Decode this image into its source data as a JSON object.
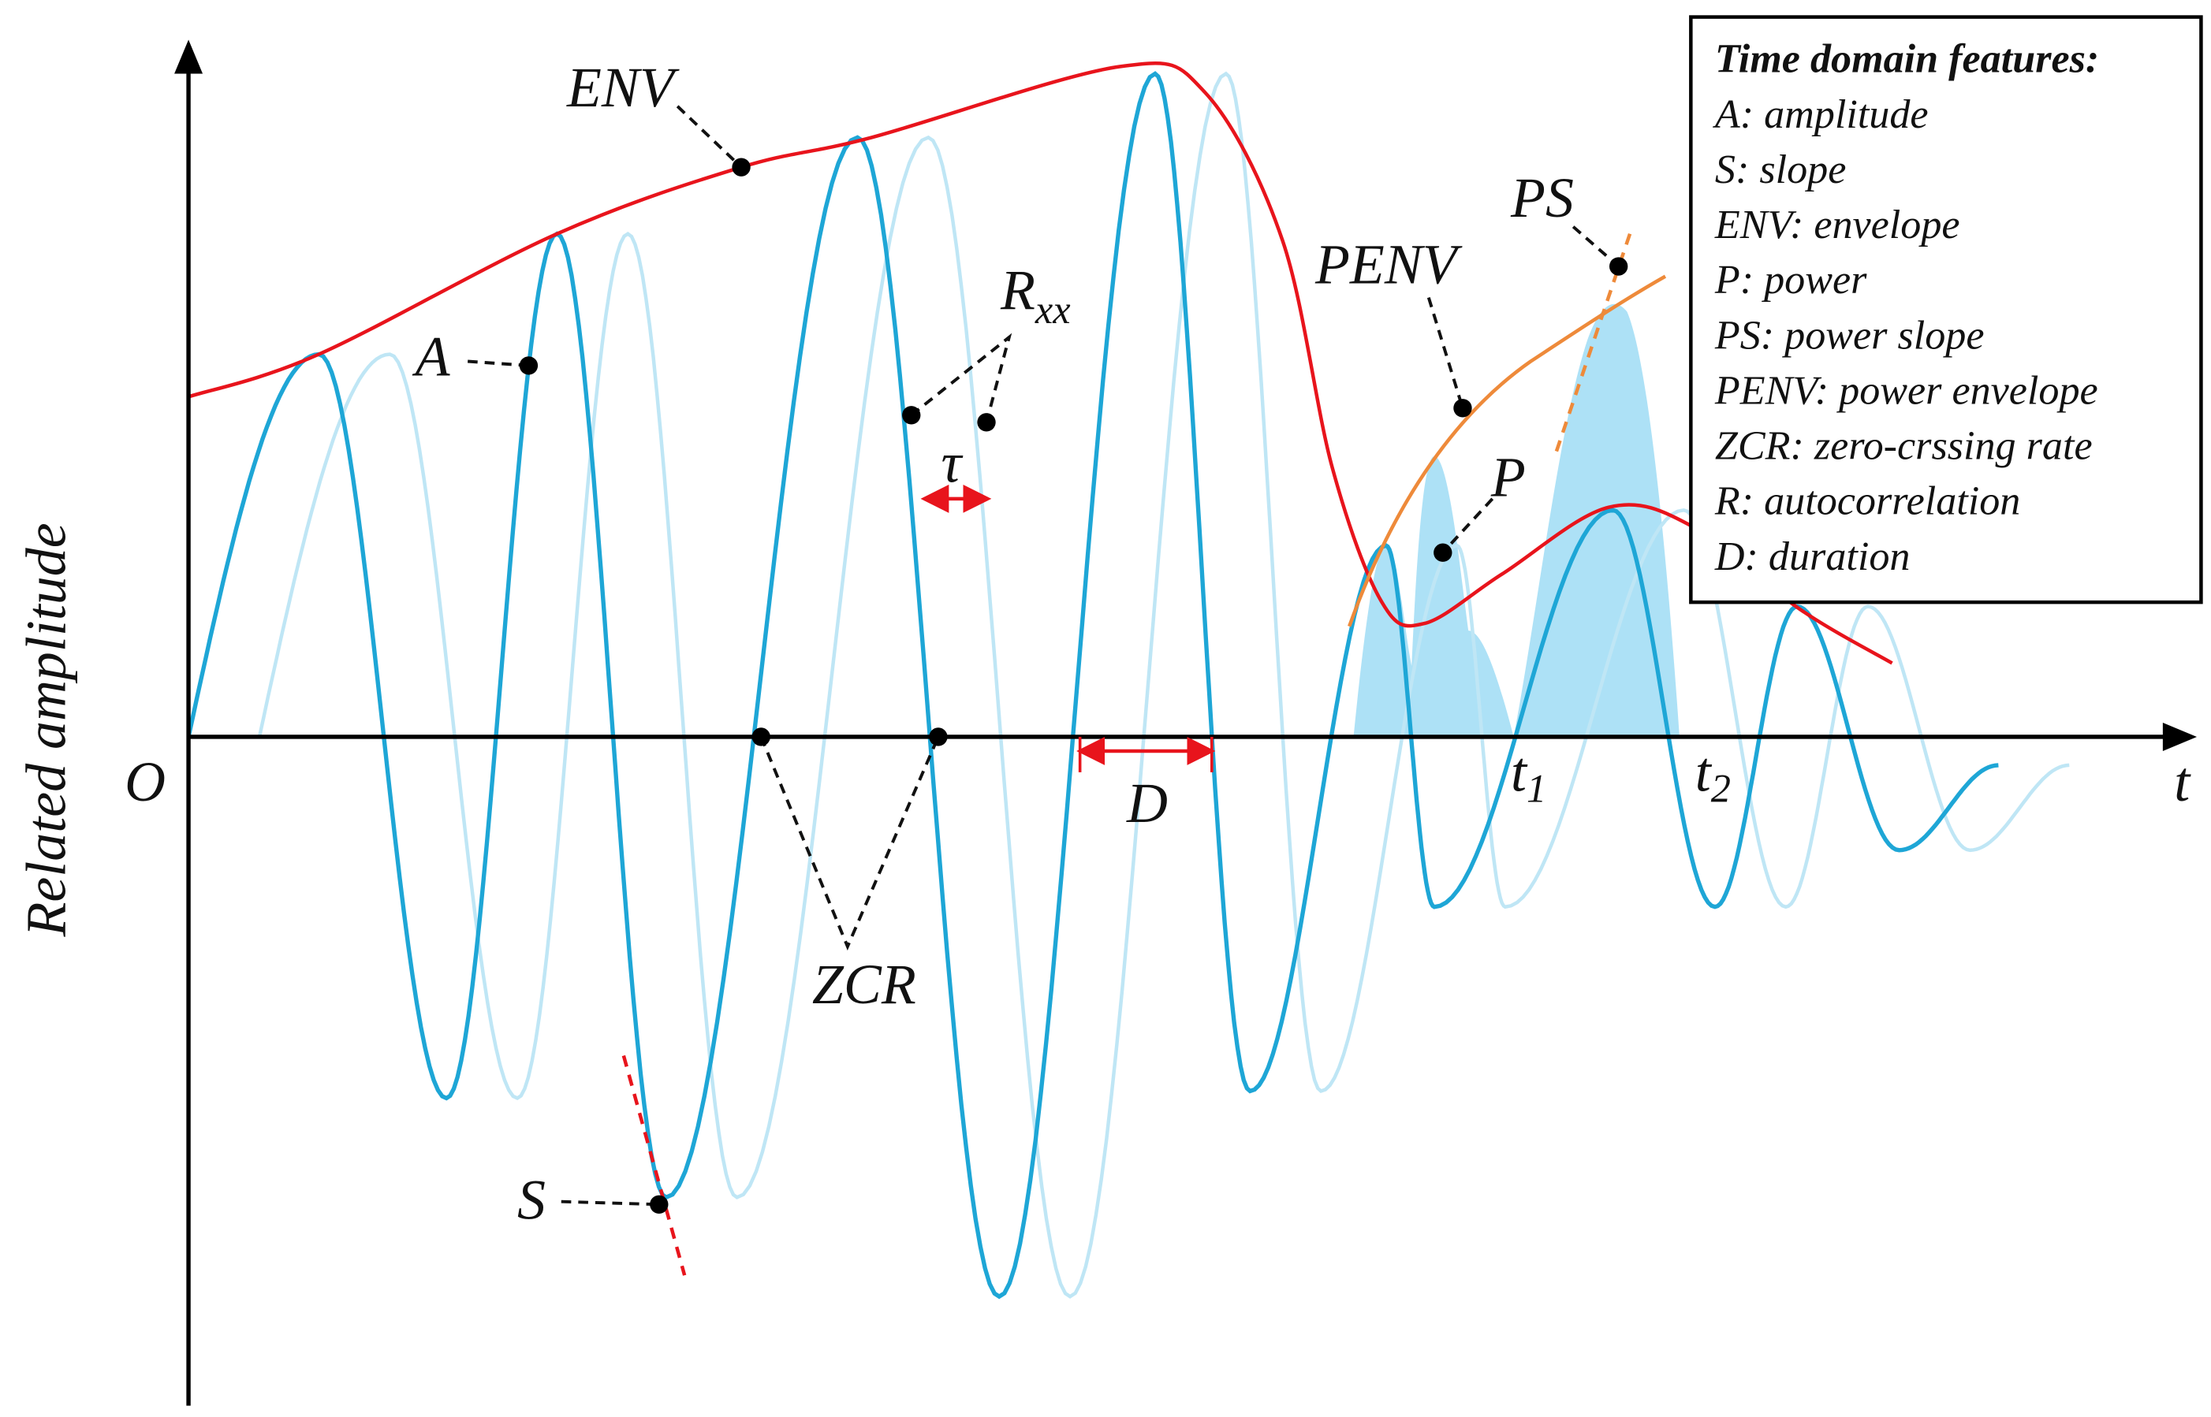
{
  "labels": {
    "env": "ENV",
    "a": "A",
    "s": "S",
    "zcr": "ZCR",
    "rxx": {
      "main": "R",
      "sub": "xx"
    },
    "tau": "τ",
    "d": "D",
    "penv": "PENV",
    "ps": "PS",
    "p": "P",
    "origin": "O",
    "t": "t",
    "t1": {
      "main": "t",
      "sub": "1"
    },
    "t2": {
      "main": "t",
      "sub": "2"
    }
  },
  "y_axis_label": "Related amplitude",
  "legend": {
    "title": "Time domain features:",
    "items": [
      "A: amplitude",
      "S: slope",
      "ENV: envelope",
      "P: power",
      "PS: power slope",
      "PENV: power envelope",
      "ZCR: zero-crssing rate",
      "R: autocorrelation",
      "D: duration"
    ]
  }
}
